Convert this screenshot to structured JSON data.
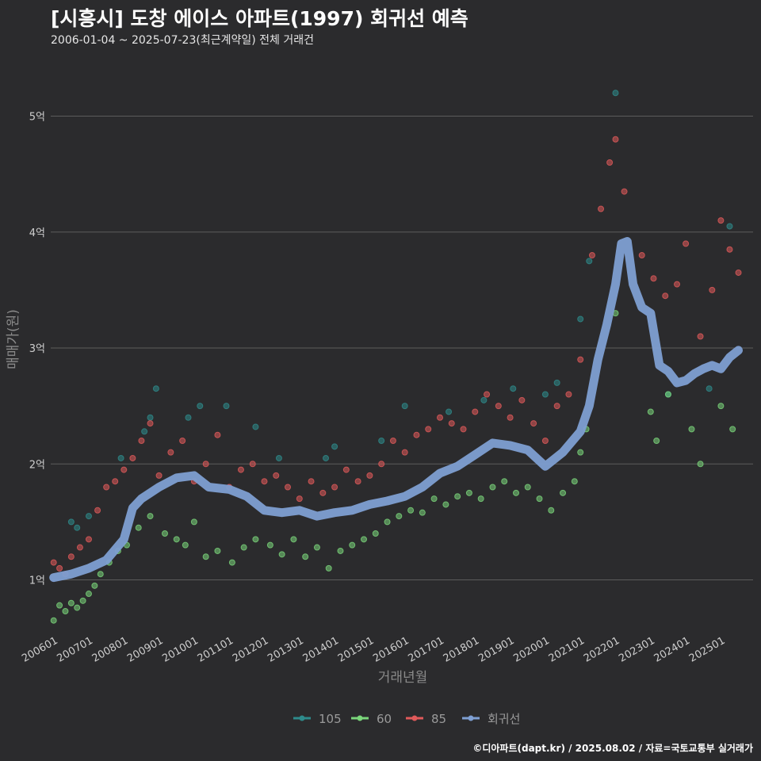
{
  "header": {
    "title": "[시흥시] 도창 에이스 아파트(1997) 회귀선 예측",
    "subtitle": "2006-01-04 ~ 2025-07-23(최근계약일) 전체 거래건"
  },
  "footer": {
    "credit": "©디아파트(dapt.kr) / 2025.08.02 / 자료=국토교통부 실거래가"
  },
  "chart_data": {
    "type": "scatter",
    "title": "[시흥시] 도창 에이스 아파트(1997) 회귀선 예측",
    "subtitle": "2006-01-04 ~ 2025-07-23(최근계약일) 전체 거래건",
    "xlabel": "거래년월",
    "ylabel": "매매가(원)",
    "x_range": [
      "2005-12",
      "2025-12"
    ],
    "ylim": [
      0.6,
      5.4
    ],
    "y_unit": "억",
    "y_ticks": [
      1,
      2,
      3,
      4,
      5
    ],
    "y_tick_labels": [
      "1억",
      "2억",
      "3억",
      "4억",
      "5억"
    ],
    "x_ticks": [
      "2006-01",
      "2007-01",
      "2008-01",
      "2009-01",
      "2010-01",
      "2011-01",
      "2012-01",
      "2013-01",
      "2014-01",
      "2015-01",
      "2016-01",
      "2017-01",
      "2018-01",
      "2019-01",
      "2020-01",
      "2021-01",
      "2022-01",
      "2023-01",
      "2024-01",
      "2025-01"
    ],
    "x_tick_labels": [
      "200601",
      "200701",
      "200801",
      "200901",
      "201001",
      "201101",
      "201201",
      "201301",
      "201401",
      "201501",
      "201601",
      "201701",
      "201801",
      "201901",
      "202001",
      "202101",
      "202201",
      "202301",
      "202401",
      "202501"
    ],
    "grid": "horizontal",
    "legend_position": "bottom",
    "legend_labels": [
      "105",
      "60",
      "85",
      "회귀선"
    ],
    "colors": {
      "105": "#2e8b8b",
      "60": "#7ad67a",
      "85": "#e05a5a",
      "회귀선": "#7e9fd2"
    },
    "series": [
      {
        "name": "105",
        "values": [
          {
            "x": "2006-07",
            "y": 1.5
          },
          {
            "x": "2006-09",
            "y": 1.45
          },
          {
            "x": "2007-01",
            "y": 1.55
          },
          {
            "x": "2007-12",
            "y": 2.05
          },
          {
            "x": "2008-08",
            "y": 2.28
          },
          {
            "x": "2008-10",
            "y": 2.4
          },
          {
            "x": "2008-12",
            "y": 2.65
          },
          {
            "x": "2009-11",
            "y": 2.4
          },
          {
            "x": "2010-03",
            "y": 2.5
          },
          {
            "x": "2010-12",
            "y": 2.5
          },
          {
            "x": "2011-10",
            "y": 2.32
          },
          {
            "x": "2012-06",
            "y": 2.05
          },
          {
            "x": "2013-10",
            "y": 2.05
          },
          {
            "x": "2014-01",
            "y": 2.15
          },
          {
            "x": "2015-05",
            "y": 2.2
          },
          {
            "x": "2016-01",
            "y": 2.5
          },
          {
            "x": "2017-04",
            "y": 2.45
          },
          {
            "x": "2018-04",
            "y": 2.55
          },
          {
            "x": "2019-02",
            "y": 2.65
          },
          {
            "x": "2020-01",
            "y": 2.6
          },
          {
            "x": "2020-05",
            "y": 2.7
          },
          {
            "x": "2021-01",
            "y": 3.25
          },
          {
            "x": "2021-04",
            "y": 3.75
          },
          {
            "x": "2022-01",
            "y": 5.2
          },
          {
            "x": "2023-07",
            "y": 2.6
          },
          {
            "x": "2024-09",
            "y": 2.65
          },
          {
            "x": "2025-04",
            "y": 4.05
          }
        ]
      },
      {
        "name": "60",
        "values": [
          {
            "x": "2006-01",
            "y": 0.65
          },
          {
            "x": "2006-03",
            "y": 0.78
          },
          {
            "x": "2006-05",
            "y": 0.73
          },
          {
            "x": "2006-07",
            "y": 0.8
          },
          {
            "x": "2006-09",
            "y": 0.76
          },
          {
            "x": "2006-11",
            "y": 0.82
          },
          {
            "x": "2007-01",
            "y": 0.88
          },
          {
            "x": "2007-03",
            "y": 0.95
          },
          {
            "x": "2007-05",
            "y": 1.05
          },
          {
            "x": "2007-08",
            "y": 1.15
          },
          {
            "x": "2007-11",
            "y": 1.25
          },
          {
            "x": "2008-02",
            "y": 1.3
          },
          {
            "x": "2008-06",
            "y": 1.45
          },
          {
            "x": "2008-10",
            "y": 1.55
          },
          {
            "x": "2009-03",
            "y": 1.4
          },
          {
            "x": "2009-07",
            "y": 1.35
          },
          {
            "x": "2009-10",
            "y": 1.3
          },
          {
            "x": "2010-01",
            "y": 1.5
          },
          {
            "x": "2010-05",
            "y": 1.2
          },
          {
            "x": "2010-09",
            "y": 1.25
          },
          {
            "x": "2011-02",
            "y": 1.15
          },
          {
            "x": "2011-06",
            "y": 1.28
          },
          {
            "x": "2011-10",
            "y": 1.35
          },
          {
            "x": "2012-03",
            "y": 1.3
          },
          {
            "x": "2012-07",
            "y": 1.22
          },
          {
            "x": "2012-11",
            "y": 1.35
          },
          {
            "x": "2013-03",
            "y": 1.2
          },
          {
            "x": "2013-07",
            "y": 1.28
          },
          {
            "x": "2013-11",
            "y": 1.1
          },
          {
            "x": "2014-03",
            "y": 1.25
          },
          {
            "x": "2014-07",
            "y": 1.3
          },
          {
            "x": "2014-11",
            "y": 1.35
          },
          {
            "x": "2015-03",
            "y": 1.4
          },
          {
            "x": "2015-07",
            "y": 1.5
          },
          {
            "x": "2015-11",
            "y": 1.55
          },
          {
            "x": "2016-03",
            "y": 1.6
          },
          {
            "x": "2016-07",
            "y": 1.58
          },
          {
            "x": "2016-11",
            "y": 1.7
          },
          {
            "x": "2017-03",
            "y": 1.65
          },
          {
            "x": "2017-07",
            "y": 1.72
          },
          {
            "x": "2017-11",
            "y": 1.75
          },
          {
            "x": "2018-03",
            "y": 1.7
          },
          {
            "x": "2018-07",
            "y": 1.8
          },
          {
            "x": "2018-11",
            "y": 1.85
          },
          {
            "x": "2019-03",
            "y": 1.75
          },
          {
            "x": "2019-07",
            "y": 1.8
          },
          {
            "x": "2019-11",
            "y": 1.7
          },
          {
            "x": "2020-03",
            "y": 1.6
          },
          {
            "x": "2020-07",
            "y": 1.75
          },
          {
            "x": "2020-11",
            "y": 1.85
          },
          {
            "x": "2021-01",
            "y": 2.1
          },
          {
            "x": "2021-03",
            "y": 2.3
          },
          {
            "x": "2022-01",
            "y": 3.3
          },
          {
            "x": "2023-01",
            "y": 2.45
          },
          {
            "x": "2023-03",
            "y": 2.2
          },
          {
            "x": "2023-07",
            "y": 2.6
          },
          {
            "x": "2024-03",
            "y": 2.3
          },
          {
            "x": "2024-06",
            "y": 2.0
          },
          {
            "x": "2025-01",
            "y": 2.5
          },
          {
            "x": "2025-05",
            "y": 2.3
          }
        ]
      },
      {
        "name": "85",
        "values": [
          {
            "x": "2006-01",
            "y": 1.15
          },
          {
            "x": "2006-03",
            "y": 1.1
          },
          {
            "x": "2006-05",
            "y": 1.05
          },
          {
            "x": "2006-07",
            "y": 1.2
          },
          {
            "x": "2006-10",
            "y": 1.28
          },
          {
            "x": "2007-01",
            "y": 1.35
          },
          {
            "x": "2007-04",
            "y": 1.6
          },
          {
            "x": "2007-07",
            "y": 1.8
          },
          {
            "x": "2007-10",
            "y": 1.85
          },
          {
            "x": "2008-01",
            "y": 1.95
          },
          {
            "x": "2008-04",
            "y": 2.05
          },
          {
            "x": "2008-07",
            "y": 2.2
          },
          {
            "x": "2008-10",
            "y": 2.35
          },
          {
            "x": "2009-01",
            "y": 1.9
          },
          {
            "x": "2009-05",
            "y": 2.1
          },
          {
            "x": "2009-09",
            "y": 2.2
          },
          {
            "x": "2010-01",
            "y": 1.85
          },
          {
            "x": "2010-05",
            "y": 2.0
          },
          {
            "x": "2010-09",
            "y": 2.25
          },
          {
            "x": "2011-01",
            "y": 1.8
          },
          {
            "x": "2011-05",
            "y": 1.95
          },
          {
            "x": "2011-09",
            "y": 2.0
          },
          {
            "x": "2012-01",
            "y": 1.85
          },
          {
            "x": "2012-05",
            "y": 1.9
          },
          {
            "x": "2012-09",
            "y": 1.8
          },
          {
            "x": "2013-01",
            "y": 1.7
          },
          {
            "x": "2013-05",
            "y": 1.85
          },
          {
            "x": "2013-09",
            "y": 1.75
          },
          {
            "x": "2014-01",
            "y": 1.8
          },
          {
            "x": "2014-05",
            "y": 1.95
          },
          {
            "x": "2014-09",
            "y": 1.85
          },
          {
            "x": "2015-01",
            "y": 1.9
          },
          {
            "x": "2015-05",
            "y": 2.0
          },
          {
            "x": "2015-09",
            "y": 2.2
          },
          {
            "x": "2016-01",
            "y": 2.1
          },
          {
            "x": "2016-05",
            "y": 2.25
          },
          {
            "x": "2016-09",
            "y": 2.3
          },
          {
            "x": "2017-01",
            "y": 2.4
          },
          {
            "x": "2017-05",
            "y": 2.35
          },
          {
            "x": "2017-09",
            "y": 2.3
          },
          {
            "x": "2018-01",
            "y": 2.45
          },
          {
            "x": "2018-05",
            "y": 2.6
          },
          {
            "x": "2018-09",
            "y": 2.5
          },
          {
            "x": "2019-01",
            "y": 2.4
          },
          {
            "x": "2019-05",
            "y": 2.55
          },
          {
            "x": "2019-09",
            "y": 2.35
          },
          {
            "x": "2020-01",
            "y": 2.2
          },
          {
            "x": "2020-05",
            "y": 2.5
          },
          {
            "x": "2020-09",
            "y": 2.6
          },
          {
            "x": "2021-01",
            "y": 2.9
          },
          {
            "x": "2021-05",
            "y": 3.8
          },
          {
            "x": "2021-08",
            "y": 4.2
          },
          {
            "x": "2021-11",
            "y": 4.6
          },
          {
            "x": "2022-01",
            "y": 4.8
          },
          {
            "x": "2022-04",
            "y": 4.35
          },
          {
            "x": "2022-10",
            "y": 3.8
          },
          {
            "x": "2023-02",
            "y": 3.6
          },
          {
            "x": "2023-06",
            "y": 3.45
          },
          {
            "x": "2023-10",
            "y": 3.55
          },
          {
            "x": "2024-01",
            "y": 3.9
          },
          {
            "x": "2024-06",
            "y": 3.1
          },
          {
            "x": "2024-10",
            "y": 3.5
          },
          {
            "x": "2025-01",
            "y": 4.1
          },
          {
            "x": "2025-04",
            "y": 3.85
          },
          {
            "x": "2025-07",
            "y": 3.65
          }
        ]
      },
      {
        "name": "회귀선",
        "values": [
          {
            "x": "2006-01",
            "y": 1.02
          },
          {
            "x": "2006-07",
            "y": 1.05
          },
          {
            "x": "2007-01",
            "y": 1.1
          },
          {
            "x": "2007-07",
            "y": 1.17
          },
          {
            "x": "2008-01",
            "y": 1.35
          },
          {
            "x": "2008-04",
            "y": 1.62
          },
          {
            "x": "2008-07",
            "y": 1.7
          },
          {
            "x": "2009-01",
            "y": 1.8
          },
          {
            "x": "2009-07",
            "y": 1.88
          },
          {
            "x": "2010-01",
            "y": 1.9
          },
          {
            "x": "2010-06",
            "y": 1.8
          },
          {
            "x": "2011-01",
            "y": 1.78
          },
          {
            "x": "2011-07",
            "y": 1.72
          },
          {
            "x": "2012-01",
            "y": 1.6
          },
          {
            "x": "2012-07",
            "y": 1.58
          },
          {
            "x": "2013-01",
            "y": 1.6
          },
          {
            "x": "2013-07",
            "y": 1.55
          },
          {
            "x": "2014-01",
            "y": 1.58
          },
          {
            "x": "2014-07",
            "y": 1.6
          },
          {
            "x": "2015-01",
            "y": 1.65
          },
          {
            "x": "2015-07",
            "y": 1.68
          },
          {
            "x": "2016-01",
            "y": 1.72
          },
          {
            "x": "2016-07",
            "y": 1.8
          },
          {
            "x": "2017-01",
            "y": 1.92
          },
          {
            "x": "2017-07",
            "y": 1.98
          },
          {
            "x": "2018-01",
            "y": 2.08
          },
          {
            "x": "2018-07",
            "y": 2.18
          },
          {
            "x": "2019-01",
            "y": 2.16
          },
          {
            "x": "2019-07",
            "y": 2.12
          },
          {
            "x": "2020-01",
            "y": 1.98
          },
          {
            "x": "2020-07",
            "y": 2.1
          },
          {
            "x": "2021-01",
            "y": 2.28
          },
          {
            "x": "2021-04",
            "y": 2.5
          },
          {
            "x": "2021-07",
            "y": 2.9
          },
          {
            "x": "2021-10",
            "y": 3.2
          },
          {
            "x": "2022-01",
            "y": 3.55
          },
          {
            "x": "2022-03",
            "y": 3.9
          },
          {
            "x": "2022-05",
            "y": 3.92
          },
          {
            "x": "2022-07",
            "y": 3.55
          },
          {
            "x": "2022-10",
            "y": 3.35
          },
          {
            "x": "2023-01",
            "y": 3.3
          },
          {
            "x": "2023-04",
            "y": 2.85
          },
          {
            "x": "2023-07",
            "y": 2.8
          },
          {
            "x": "2023-10",
            "y": 2.7
          },
          {
            "x": "2024-01",
            "y": 2.72
          },
          {
            "x": "2024-04",
            "y": 2.78
          },
          {
            "x": "2024-07",
            "y": 2.82
          },
          {
            "x": "2024-10",
            "y": 2.85
          },
          {
            "x": "2025-01",
            "y": 2.82
          },
          {
            "x": "2025-04",
            "y": 2.92
          },
          {
            "x": "2025-07",
            "y": 2.98
          }
        ]
      }
    ]
  }
}
